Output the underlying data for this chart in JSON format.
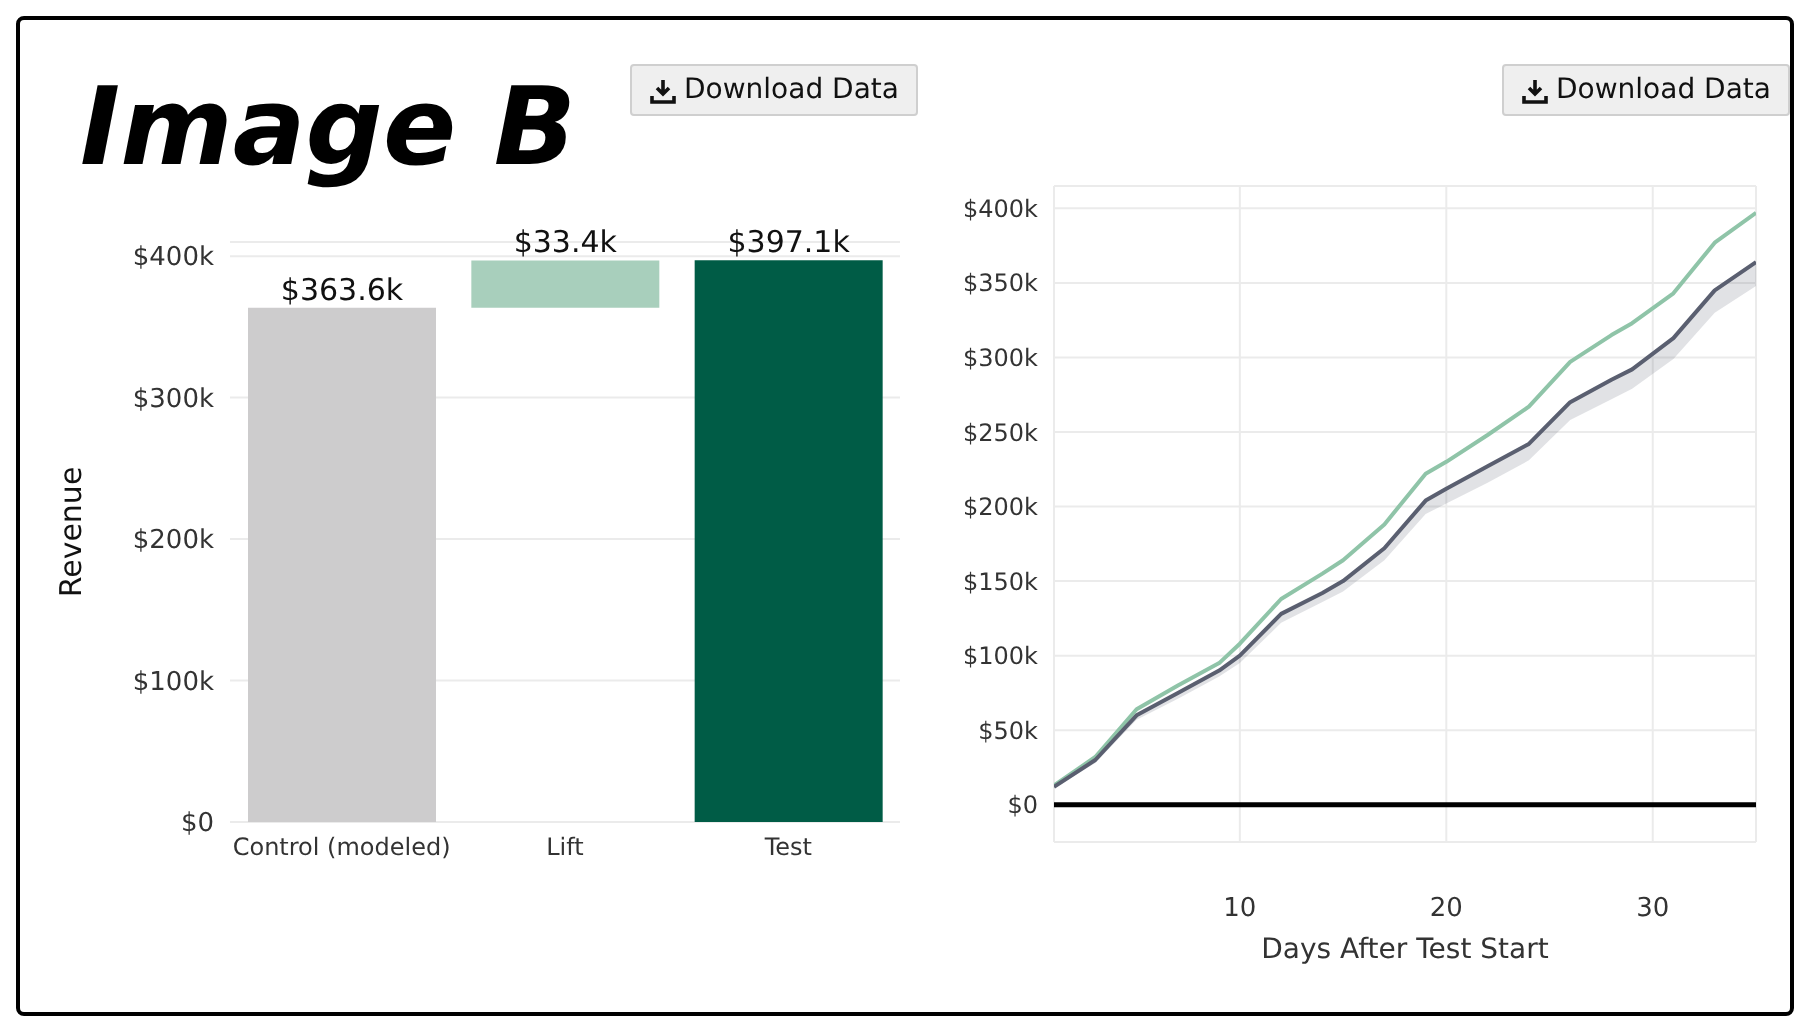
{
  "chart_data": [
    {
      "type": "bar",
      "title": "Image B",
      "ylabel": "Revenue",
      "annotations": [
        "Download Data"
      ],
      "categories": [
        "Control (modeled)",
        "Lift",
        "Test"
      ],
      "values": [
        363.6,
        33.4,
        397.1
      ],
      "base": [
        0,
        363.6,
        0
      ],
      "colors": [
        "#cdcccd",
        "#a8cfbc",
        "#005c46"
      ],
      "value_labels": [
        "$363.6k",
        "$33.4k",
        "$397.1k"
      ],
      "ylim": [
        0,
        410
      ],
      "yticks": [
        {
          "value": 0,
          "label": "$0"
        },
        {
          "value": 100,
          "label": "$100k"
        },
        {
          "value": 200,
          "label": "$200k"
        },
        {
          "value": 300,
          "label": "$300k"
        },
        {
          "value": 400,
          "label": "$400k"
        }
      ],
      "grid": "y",
      "legend": false
    },
    {
      "type": "line",
      "xlabel": "Days After Test Start",
      "annotations": [
        "Download Data"
      ],
      "x": [
        1,
        3,
        5,
        7,
        9,
        10,
        12,
        14,
        15,
        17,
        19,
        20,
        22,
        24,
        26,
        28,
        29,
        31,
        33,
        35
      ],
      "series": [
        {
          "color": "#8fc4a8",
          "values": [
            13,
            32,
            64,
            80,
            95,
            108,
            138,
            155,
            164,
            188,
            222,
            230,
            248,
            267,
            297,
            315,
            323,
            343,
            377,
            397
          ]
        },
        {
          "color": "#5a5f70",
          "values": [
            12,
            30,
            60,
            75,
            90,
            100,
            128,
            142,
            150,
            172,
            204,
            212,
            227,
            242,
            270,
            285,
            292,
            313,
            345,
            364
          ],
          "lower": [
            11,
            28,
            57,
            71,
            86,
            95,
            122,
            136,
            143,
            164,
            195,
            202,
            216,
            231,
            258,
            272,
            279,
            299,
            330,
            348
          ],
          "upper": [
            12,
            30,
            61,
            76,
            91,
            101,
            129,
            143,
            151,
            173,
            205,
            213,
            228,
            243,
            271,
            286,
            293,
            314,
            346,
            364
          ]
        }
      ],
      "ref_lines": [
        {
          "axis": "y",
          "value": 0,
          "color": "#000000"
        }
      ],
      "xlim": [
        1,
        35
      ],
      "xticks": [
        10,
        20,
        30
      ],
      "ylim": [
        -25,
        415
      ],
      "yticks": [
        {
          "value": 0,
          "label": "$0"
        },
        {
          "value": 50,
          "label": "$50k"
        },
        {
          "value": 100,
          "label": "$100k"
        },
        {
          "value": 150,
          "label": "$150k"
        },
        {
          "value": 200,
          "label": "$200k"
        },
        {
          "value": 250,
          "label": "$250k"
        },
        {
          "value": 300,
          "label": "$300k"
        },
        {
          "value": 350,
          "label": "$350k"
        },
        {
          "value": 400,
          "label": "$400k"
        }
      ],
      "grid": true,
      "legend": false,
      "marker": "none",
      "line_style": "solid"
    }
  ]
}
